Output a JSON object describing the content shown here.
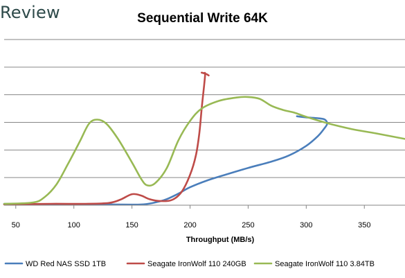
{
  "brand": {
    "text": "Review"
  },
  "chart_data": {
    "type": "line",
    "title": "Sequential Write 64K",
    "xlabel": "Throughput (MB/s)",
    "ylabel": "",
    "xlim": [
      40,
      385
    ],
    "ylim": [
      0,
      6
    ],
    "xticks": [
      50,
      100,
      150,
      200,
      250,
      300,
      350
    ],
    "grid": true,
    "legend_position": "bottom",
    "series": [
      {
        "name": "WD Red NAS SSD 1TB",
        "color": "#4a7ebb",
        "points": [
          [
            40,
            0.05
          ],
          [
            80,
            0.03
          ],
          [
            120,
            0.03
          ],
          [
            150,
            0.02
          ],
          [
            160,
            0.03
          ],
          [
            170,
            0.1
          ],
          [
            180,
            0.22
          ],
          [
            190,
            0.42
          ],
          [
            200,
            0.65
          ],
          [
            215,
            0.9
          ],
          [
            230,
            1.1
          ],
          [
            250,
            1.35
          ],
          [
            270,
            1.58
          ],
          [
            285,
            1.8
          ],
          [
            300,
            2.15
          ],
          [
            310,
            2.5
          ],
          [
            315,
            2.75
          ],
          [
            318,
            2.95
          ],
          [
            316,
            3.1
          ],
          [
            310,
            3.15
          ],
          [
            300,
            3.18
          ],
          [
            292,
            3.22
          ]
        ]
      },
      {
        "name": "Seagate IronWolf 110 240GB",
        "color": "#be4b48",
        "points": [
          [
            40,
            0.03
          ],
          [
            80,
            0.05
          ],
          [
            110,
            0.05
          ],
          [
            130,
            0.08
          ],
          [
            140,
            0.2
          ],
          [
            150,
            0.4
          ],
          [
            158,
            0.35
          ],
          [
            165,
            0.22
          ],
          [
            175,
            0.15
          ],
          [
            185,
            0.2
          ],
          [
            193,
            0.5
          ],
          [
            200,
            1.1
          ],
          [
            205,
            1.8
          ],
          [
            208,
            2.6
          ],
          [
            210,
            3.5
          ],
          [
            212,
            4.3
          ],
          [
            213,
            4.75
          ],
          [
            212,
            4.78
          ],
          [
            210,
            4.8
          ],
          [
            214,
            4.75
          ],
          [
            216,
            4.7
          ]
        ]
      },
      {
        "name": "Seagate IronWolf 110 3.84TB",
        "color": "#98b954",
        "points": [
          [
            40,
            0.05
          ],
          [
            65,
            0.1
          ],
          [
            75,
            0.3
          ],
          [
            85,
            0.75
          ],
          [
            95,
            1.5
          ],
          [
            105,
            2.3
          ],
          [
            113,
            2.95
          ],
          [
            120,
            3.1
          ],
          [
            128,
            2.95
          ],
          [
            138,
            2.4
          ],
          [
            150,
            1.55
          ],
          [
            158,
            0.95
          ],
          [
            163,
            0.72
          ],
          [
            170,
            0.8
          ],
          [
            180,
            1.35
          ],
          [
            190,
            2.35
          ],
          [
            200,
            3.05
          ],
          [
            210,
            3.5
          ],
          [
            225,
            3.78
          ],
          [
            240,
            3.9
          ],
          [
            250,
            3.92
          ],
          [
            260,
            3.85
          ],
          [
            270,
            3.6
          ],
          [
            280,
            3.45
          ],
          [
            290,
            3.35
          ],
          [
            300,
            3.2
          ],
          [
            320,
            2.95
          ],
          [
            340,
            2.75
          ],
          [
            360,
            2.6
          ],
          [
            385,
            2.4
          ]
        ]
      }
    ]
  }
}
